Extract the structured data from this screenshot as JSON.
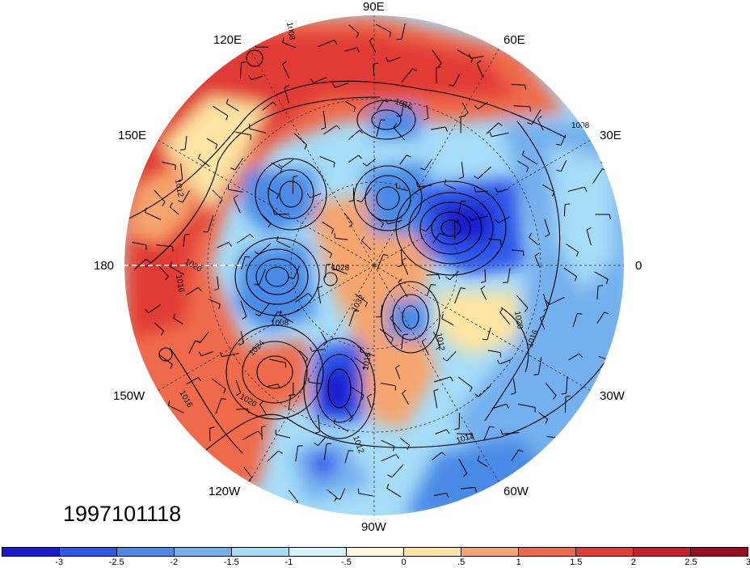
{
  "map": {
    "longitude_labels": {
      "lon_90e": "90E",
      "lon_60e": "60E",
      "lon_30e": "30E",
      "lon_0": "0",
      "lon_30w": "30W",
      "lon_60w": "60W",
      "lon_90w": "90W",
      "lon_120w": "120W",
      "lon_150w": "150W",
      "lon_180": "180",
      "lon_150e": "150E",
      "lon_120e": "120E"
    },
    "contour_labels": [
      "1012",
      "1008",
      "1016",
      "1020",
      "1024",
      "1016",
      "1020",
      "1028",
      "1012",
      "1008",
      "1016",
      "1020",
      "1012",
      "1016",
      "1012",
      "1016",
      "1008",
      "1032"
    ],
    "timestamp": "1997101118",
    "colors": {
      "land_outline": "#333333",
      "contour": "#000000"
    }
  },
  "colorbar": {
    "colors": [
      "#1a1ad0",
      "#2f57e8",
      "#4a8ae6",
      "#74b0ee",
      "#a6dcf7",
      "#d5f3fb",
      "#fffad9",
      "#fde4a3",
      "#f6a66e",
      "#ef6a4c",
      "#e13b36",
      "#c81e2b",
      "#9a0c1f"
    ],
    "tick_labels": [
      "-3",
      "-2.5",
      "-2",
      "-1.5",
      "-1",
      "-.5",
      "0",
      ".5",
      "1",
      "1.5",
      "2",
      "2.5",
      "3"
    ]
  }
}
